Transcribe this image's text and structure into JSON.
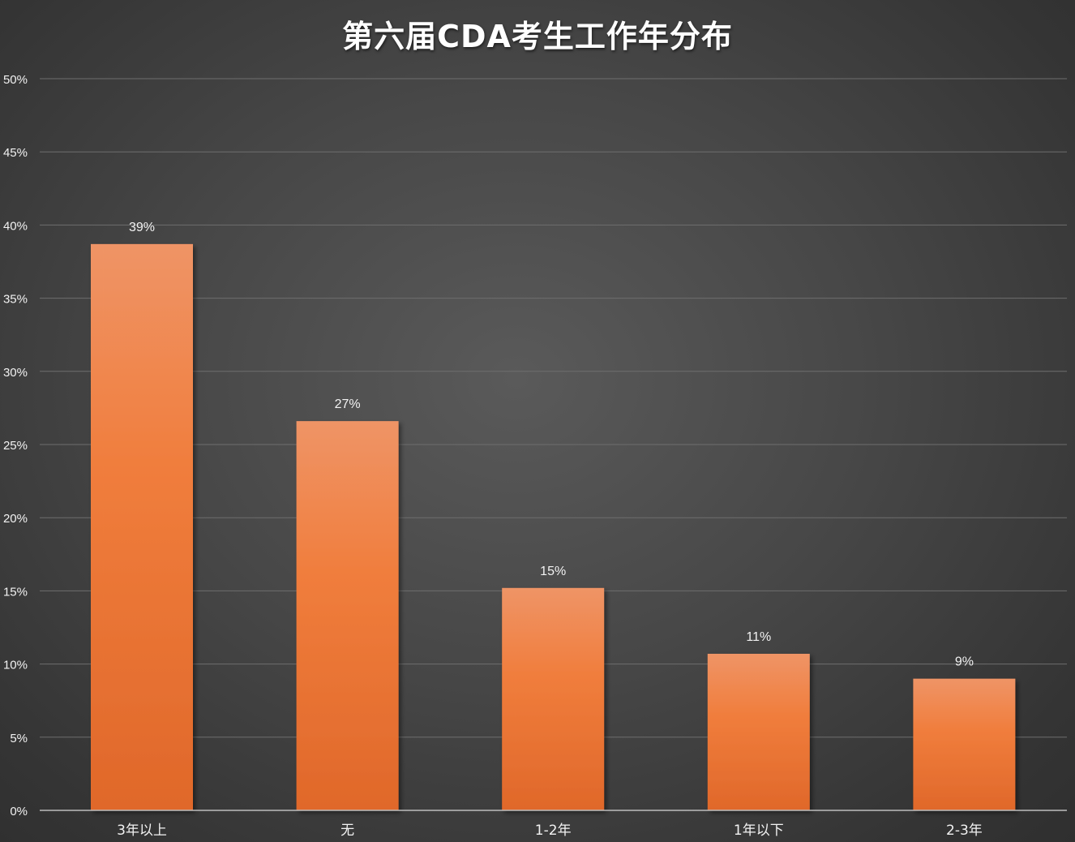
{
  "chart_data": {
    "type": "bar",
    "title": "第六届CDA考生工作年分布",
    "categories": [
      "3年以上",
      "无",
      "1-2年",
      "1年以下",
      "2-3年"
    ],
    "values": [
      38.7,
      26.6,
      15.2,
      10.7,
      9.0
    ],
    "data_labels": [
      "39%",
      "27%",
      "15%",
      "11%",
      "9%"
    ],
    "y_ticks": [
      "0%",
      "5%",
      "10%",
      "15%",
      "20%",
      "25%",
      "30%",
      "35%",
      "40%",
      "45%",
      "50%"
    ],
    "ylim": [
      0,
      50
    ],
    "xlabel": "",
    "ylabel": "",
    "grid": true,
    "legend": "none",
    "colors": {
      "bar_top": "#ef9466",
      "bar_mid": "#f07d3c",
      "bar_bottom": "#e0682a"
    }
  }
}
